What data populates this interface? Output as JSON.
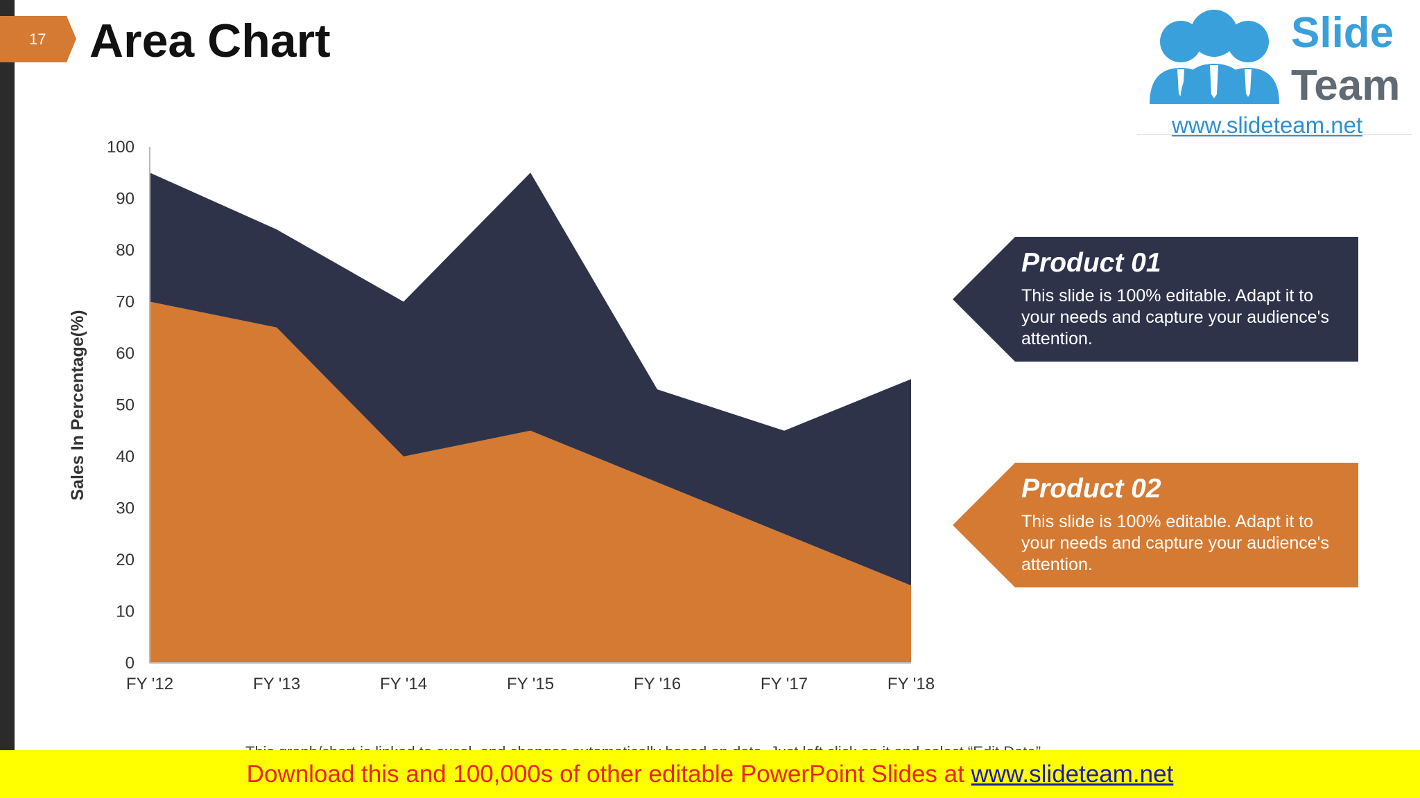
{
  "slide": {
    "page_number": "17",
    "title": "Area Chart",
    "accent_color": "#d57a32",
    "dark_color": "#2e334a"
  },
  "logo": {
    "word1": "Slide",
    "word2": "Team",
    "url": "www.slideteam.net",
    "icon": "three-people-icon"
  },
  "callouts": [
    {
      "title": "Product 01",
      "text": "This slide is 100% editable. Adapt it to your needs and capture your audience's attention.",
      "color": "#2e334a"
    },
    {
      "title": "Product 02",
      "text": "This slide is 100% editable. Adapt it to your needs and capture your audience's attention.",
      "color": "#d57a32"
    }
  ],
  "footnote": "This graph/chart is linked to excel, and changes automatically based on data. Just left click on it and select “Edit Data”.",
  "banner": {
    "text": "Download this and 100,000s of other editable PowerPoint Slides at ",
    "link": "www.slideteam.net"
  },
  "chart_data": {
    "type": "area",
    "stacked": true,
    "categories": [
      "FY '12",
      "FY '13",
      "FY '14",
      "FY '15",
      "FY '16",
      "FY '17",
      "FY '18"
    ],
    "series": [
      {
        "name": "Product 02",
        "values": [
          70,
          65,
          40,
          45,
          35,
          25,
          15
        ],
        "color": "#d57a32"
      },
      {
        "name": "Product 01",
        "values": [
          25,
          19,
          30,
          50,
          18,
          20,
          40
        ],
        "color": "#2e334a"
      }
    ],
    "ylabel": "Sales In Percentage(%)",
    "ylim": [
      0,
      100
    ],
    "yticks": [
      0,
      10,
      20,
      30,
      40,
      50,
      60,
      70,
      80,
      90,
      100
    ],
    "grid": false,
    "legend": "callouts-right"
  }
}
